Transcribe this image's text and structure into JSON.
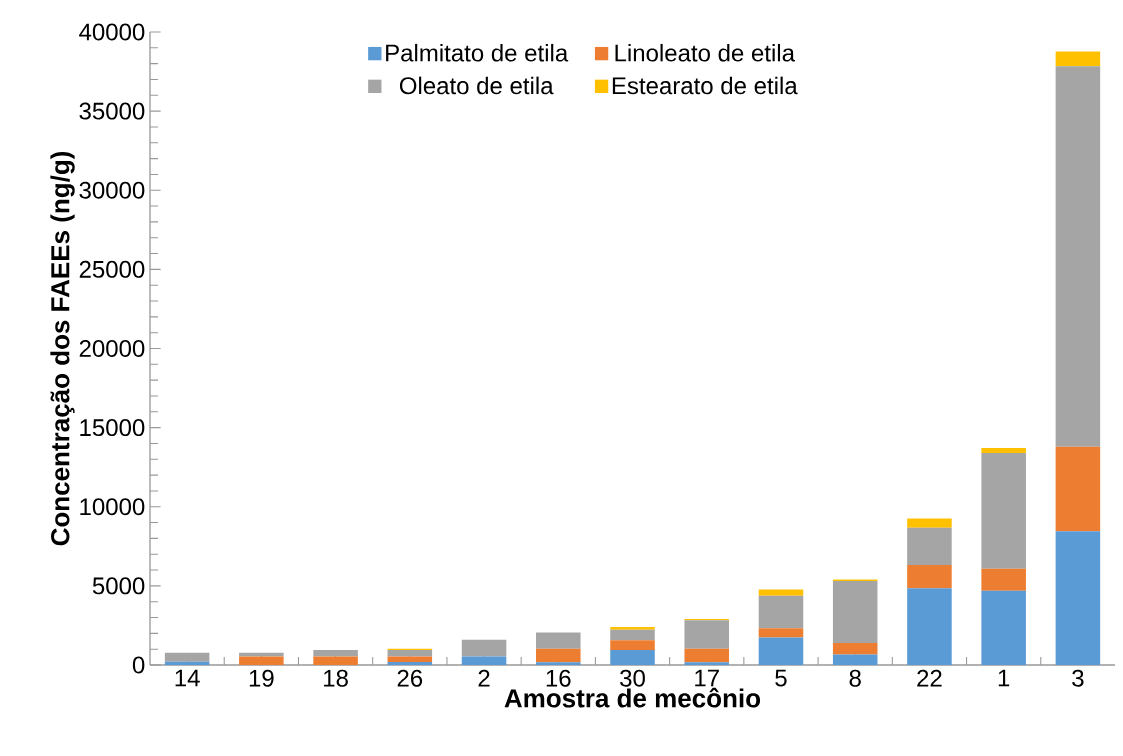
{
  "chart_data": {
    "type": "bar",
    "stacked": true,
    "xlabel": "Amostra de mecônio",
    "ylabel": "Concentração dos FAEEs (ng/g)",
    "categories": [
      "14",
      "19",
      "18",
      "26",
      "2",
      "16",
      "30",
      "17",
      "5",
      "8",
      "22",
      "1",
      "3"
    ],
    "series": [
      {
        "name": "Palmitato de etila",
        "color": "#5b9bd5",
        "values": [
          200,
          0,
          0,
          190,
          530,
          170,
          940,
          170,
          1740,
          660,
          4850,
          4690,
          8450
        ]
      },
      {
        "name": "Linoleato de etila",
        "color": "#ed7d31",
        "values": [
          0,
          530,
          530,
          340,
          0,
          850,
          630,
          850,
          580,
          730,
          1470,
          1390,
          5340
        ]
      },
      {
        "name": "Oleato de etila",
        "color": "#a5a5a5",
        "values": [
          570,
          240,
          410,
          410,
          1070,
          1040,
          660,
          1810,
          2060,
          3920,
          2350,
          7310,
          24050
        ]
      },
      {
        "name": "Estearato de etila",
        "color": "#ffc000",
        "values": [
          0,
          0,
          0,
          80,
          0,
          0,
          170,
          80,
          390,
          90,
          580,
          320,
          930
        ]
      }
    ],
    "ylim": [
      0,
      40000
    ],
    "yticks": [
      0,
      5000,
      10000,
      15000,
      20000,
      25000,
      30000,
      35000,
      40000
    ],
    "grid": false,
    "legend": "top"
  }
}
